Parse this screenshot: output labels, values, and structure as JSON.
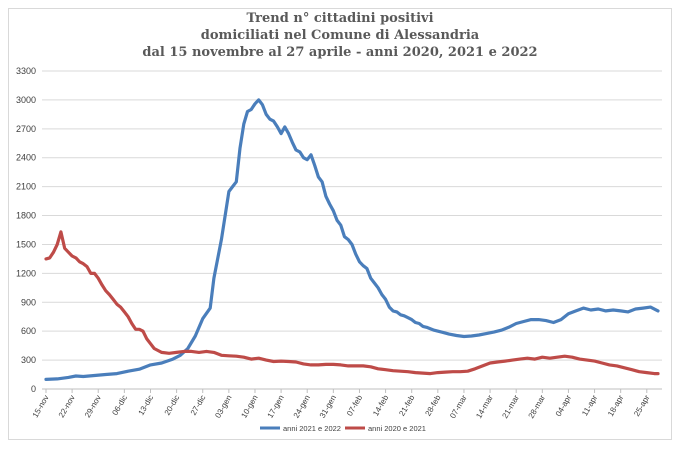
{
  "chart_data": {
    "type": "line",
    "title": [
      "Trend n° cittadini positivi",
      "domiciliati nel Comune di Alessandria",
      "dal 15 novembre al 27 aprile - anni 2020, 2021 e 2022"
    ],
    "xlabel": "",
    "ylabel": "",
    "ylim": [
      0,
      3300
    ],
    "yticks": [
      0,
      300,
      600,
      900,
      1200,
      1500,
      1800,
      2100,
      2400,
      2700,
      3000,
      3300
    ],
    "ytick_labels": [
      "0",
      "300",
      "600",
      "900",
      "1200",
      "1500",
      "1800",
      "2100",
      "2400",
      "2700",
      "3000",
      "3300"
    ],
    "x_tick_labels": [
      "15-nov",
      "22-nov",
      "29-nov",
      "06-dic",
      "13-dic",
      "20-dic",
      "27-dic",
      "03-gen",
      "10-gen",
      "17-gen",
      "24-gen",
      "31-gen",
      "07-feb",
      "14-feb",
      "21-feb",
      "28-feb",
      "07-mar",
      "14-mar",
      "21-mar",
      "28-mar",
      "04-apr",
      "11-apr",
      "18-apr",
      "25-apr"
    ],
    "x_tick_days": [
      0,
      7,
      14,
      21,
      28,
      35,
      42,
      49,
      56,
      63,
      70,
      77,
      84,
      91,
      98,
      105,
      112,
      119,
      126,
      133,
      140,
      147,
      154,
      161
    ],
    "x_range_days": [
      0,
      164
    ],
    "grid": true,
    "legend_position": "bottom",
    "series": [
      {
        "name": "anni 2021 e 2022",
        "color": "#4a7ebb",
        "points": [
          [
            0,
            100
          ],
          [
            3,
            105
          ],
          [
            6,
            120
          ],
          [
            8,
            135
          ],
          [
            10,
            130
          ],
          [
            13,
            140
          ],
          [
            16,
            150
          ],
          [
            19,
            160
          ],
          [
            22,
            185
          ],
          [
            25,
            205
          ],
          [
            28,
            250
          ],
          [
            31,
            270
          ],
          [
            34,
            310
          ],
          [
            36,
            350
          ],
          [
            38,
            420
          ],
          [
            40,
            550
          ],
          [
            42,
            730
          ],
          [
            44,
            840
          ],
          [
            45,
            1150
          ],
          [
            47,
            1550
          ],
          [
            49,
            2050
          ],
          [
            50,
            2100
          ],
          [
            51,
            2150
          ],
          [
            52,
            2500
          ],
          [
            53,
            2750
          ],
          [
            54,
            2880
          ],
          [
            55,
            2900
          ],
          [
            56,
            2960
          ],
          [
            57,
            3000
          ],
          [
            58,
            2950
          ],
          [
            59,
            2850
          ],
          [
            60,
            2800
          ],
          [
            61,
            2780
          ],
          [
            62,
            2720
          ],
          [
            63,
            2650
          ],
          [
            64,
            2720
          ],
          [
            65,
            2650
          ],
          [
            66,
            2560
          ],
          [
            67,
            2480
          ],
          [
            68,
            2460
          ],
          [
            69,
            2400
          ],
          [
            70,
            2380
          ],
          [
            71,
            2430
          ],
          [
            72,
            2320
          ],
          [
            73,
            2200
          ],
          [
            74,
            2150
          ],
          [
            75,
            2000
          ],
          [
            76,
            1920
          ],
          [
            77,
            1850
          ],
          [
            78,
            1750
          ],
          [
            79,
            1700
          ],
          [
            80,
            1580
          ],
          [
            81,
            1550
          ],
          [
            82,
            1500
          ],
          [
            83,
            1400
          ],
          [
            84,
            1320
          ],
          [
            85,
            1280
          ],
          [
            86,
            1250
          ],
          [
            87,
            1150
          ],
          [
            88,
            1100
          ],
          [
            89,
            1050
          ],
          [
            90,
            980
          ],
          [
            91,
            930
          ],
          [
            92,
            850
          ],
          [
            93,
            810
          ],
          [
            94,
            800
          ],
          [
            95,
            770
          ],
          [
            96,
            760
          ],
          [
            97,
            740
          ],
          [
            98,
            720
          ],
          [
            99,
            690
          ],
          [
            100,
            680
          ],
          [
            101,
            650
          ],
          [
            102,
            640
          ],
          [
            104,
            610
          ],
          [
            106,
            590
          ],
          [
            108,
            570
          ],
          [
            110,
            555
          ],
          [
            112,
            545
          ],
          [
            114,
            550
          ],
          [
            116,
            560
          ],
          [
            118,
            575
          ],
          [
            120,
            590
          ],
          [
            122,
            610
          ],
          [
            124,
            640
          ],
          [
            126,
            680
          ],
          [
            128,
            700
          ],
          [
            130,
            720
          ],
          [
            132,
            720
          ],
          [
            134,
            710
          ],
          [
            136,
            690
          ],
          [
            138,
            720
          ],
          [
            140,
            780
          ],
          [
            142,
            810
          ],
          [
            144,
            840
          ],
          [
            146,
            820
          ],
          [
            148,
            830
          ],
          [
            150,
            810
          ],
          [
            152,
            820
          ],
          [
            154,
            810
          ],
          [
            156,
            800
          ],
          [
            158,
            830
          ],
          [
            160,
            840
          ],
          [
            162,
            850
          ],
          [
            164,
            810
          ]
        ]
      },
      {
        "name": "anni 2020 e 2021",
        "color": "#be4b48",
        "points": [
          [
            0,
            1350
          ],
          [
            1,
            1360
          ],
          [
            2,
            1420
          ],
          [
            3,
            1500
          ],
          [
            4,
            1630
          ],
          [
            5,
            1460
          ],
          [
            6,
            1420
          ],
          [
            7,
            1380
          ],
          [
            8,
            1360
          ],
          [
            9,
            1320
          ],
          [
            10,
            1300
          ],
          [
            11,
            1270
          ],
          [
            12,
            1200
          ],
          [
            13,
            1200
          ],
          [
            14,
            1150
          ],
          [
            15,
            1080
          ],
          [
            16,
            1020
          ],
          [
            17,
            980
          ],
          [
            18,
            930
          ],
          [
            19,
            880
          ],
          [
            20,
            850
          ],
          [
            21,
            800
          ],
          [
            22,
            750
          ],
          [
            23,
            680
          ],
          [
            24,
            620
          ],
          [
            25,
            620
          ],
          [
            26,
            600
          ],
          [
            27,
            520
          ],
          [
            28,
            470
          ],
          [
            29,
            420
          ],
          [
            30,
            400
          ],
          [
            31,
            380
          ],
          [
            33,
            370
          ],
          [
            35,
            380
          ],
          [
            37,
            390
          ],
          [
            39,
            390
          ],
          [
            41,
            380
          ],
          [
            43,
            390
          ],
          [
            45,
            380
          ],
          [
            47,
            350
          ],
          [
            49,
            345
          ],
          [
            51,
            340
          ],
          [
            53,
            330
          ],
          [
            55,
            310
          ],
          [
            57,
            320
          ],
          [
            59,
            300
          ],
          [
            61,
            285
          ],
          [
            63,
            290
          ],
          [
            65,
            285
          ],
          [
            67,
            280
          ],
          [
            69,
            260
          ],
          [
            71,
            250
          ],
          [
            73,
            250
          ],
          [
            75,
            255
          ],
          [
            77,
            255
          ],
          [
            79,
            250
          ],
          [
            81,
            240
          ],
          [
            83,
            240
          ],
          [
            85,
            240
          ],
          [
            87,
            230
          ],
          [
            89,
            210
          ],
          [
            91,
            200
          ],
          [
            93,
            190
          ],
          [
            95,
            185
          ],
          [
            97,
            180
          ],
          [
            99,
            170
          ],
          [
            101,
            165
          ],
          [
            103,
            160
          ],
          [
            105,
            170
          ],
          [
            107,
            175
          ],
          [
            109,
            180
          ],
          [
            111,
            180
          ],
          [
            113,
            185
          ],
          [
            115,
            210
          ],
          [
            117,
            240
          ],
          [
            119,
            270
          ],
          [
            121,
            280
          ],
          [
            123,
            290
          ],
          [
            125,
            300
          ],
          [
            127,
            310
          ],
          [
            129,
            320
          ],
          [
            131,
            310
          ],
          [
            133,
            330
          ],
          [
            135,
            320
          ],
          [
            137,
            330
          ],
          [
            139,
            340
          ],
          [
            141,
            330
          ],
          [
            143,
            310
          ],
          [
            145,
            300
          ],
          [
            147,
            290
          ],
          [
            149,
            270
          ],
          [
            151,
            250
          ],
          [
            153,
            240
          ],
          [
            155,
            220
          ],
          [
            157,
            200
          ],
          [
            159,
            180
          ],
          [
            161,
            170
          ],
          [
            163,
            160
          ],
          [
            164,
            160
          ]
        ]
      }
    ]
  }
}
